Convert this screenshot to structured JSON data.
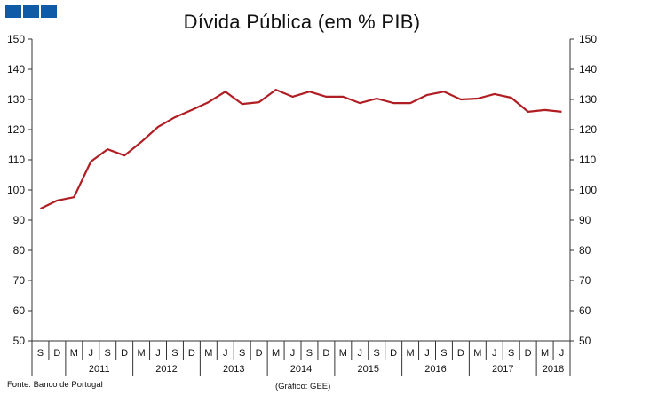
{
  "header": {
    "logo_icon": "three-blue-squares-logo",
    "title": "Dívida Pública (em % PIB)"
  },
  "footer": {
    "source": "Fonte: Banco de Portugal",
    "credit": "(Gráfico: GEE)"
  },
  "colors": {
    "line": "#B01E23",
    "axis": "#333333",
    "logo": "#0F5BA7"
  },
  "chart_data": {
    "type": "line",
    "title": "Dívida Pública (em % PIB)",
    "xlabel": "",
    "ylabel": "",
    "ylim": [
      50,
      150
    ],
    "yticks": [
      50,
      60,
      70,
      80,
      90,
      100,
      110,
      120,
      130,
      140,
      150
    ],
    "secondary_y_axis": true,
    "grid": false,
    "legend": null,
    "categories": [
      "S",
      "D",
      "M",
      "J",
      "S",
      "D",
      "M",
      "J",
      "S",
      "D",
      "M",
      "J",
      "S",
      "D",
      "M",
      "J",
      "S",
      "D",
      "M",
      "J",
      "S",
      "D",
      "M",
      "J",
      "S",
      "D",
      "M",
      "J",
      "S",
      "D",
      "M",
      "J"
    ],
    "year_groups": [
      {
        "label": "",
        "start": 0,
        "count": 2
      },
      {
        "label": "2011",
        "start": 2,
        "count": 4
      },
      {
        "label": "2012",
        "start": 6,
        "count": 4
      },
      {
        "label": "2013",
        "start": 10,
        "count": 4
      },
      {
        "label": "2014",
        "start": 14,
        "count": 4
      },
      {
        "label": "2015",
        "start": 18,
        "count": 4
      },
      {
        "label": "2016",
        "start": 22,
        "count": 4
      },
      {
        "label": "2017",
        "start": 26,
        "count": 4
      },
      {
        "label": "2018",
        "start": 30,
        "count": 2
      }
    ],
    "series": [
      {
        "name": "Dívida Pública (% PIB)",
        "values": [
          93.8,
          96.5,
          97.6,
          109.4,
          113.5,
          111.4,
          115.9,
          120.9,
          124.1,
          126.5,
          129.1,
          132.6,
          128.5,
          129.1,
          133.2,
          130.9,
          132.6,
          130.9,
          130.9,
          128.8,
          130.3,
          128.8,
          128.8,
          131.5,
          132.6,
          130.0,
          130.3,
          131.8,
          130.6,
          125.9,
          126.5,
          125.9
        ]
      }
    ],
    "source": "Fonte: Banco de Portugal",
    "annotation": "(Gráfico: GEE)"
  }
}
